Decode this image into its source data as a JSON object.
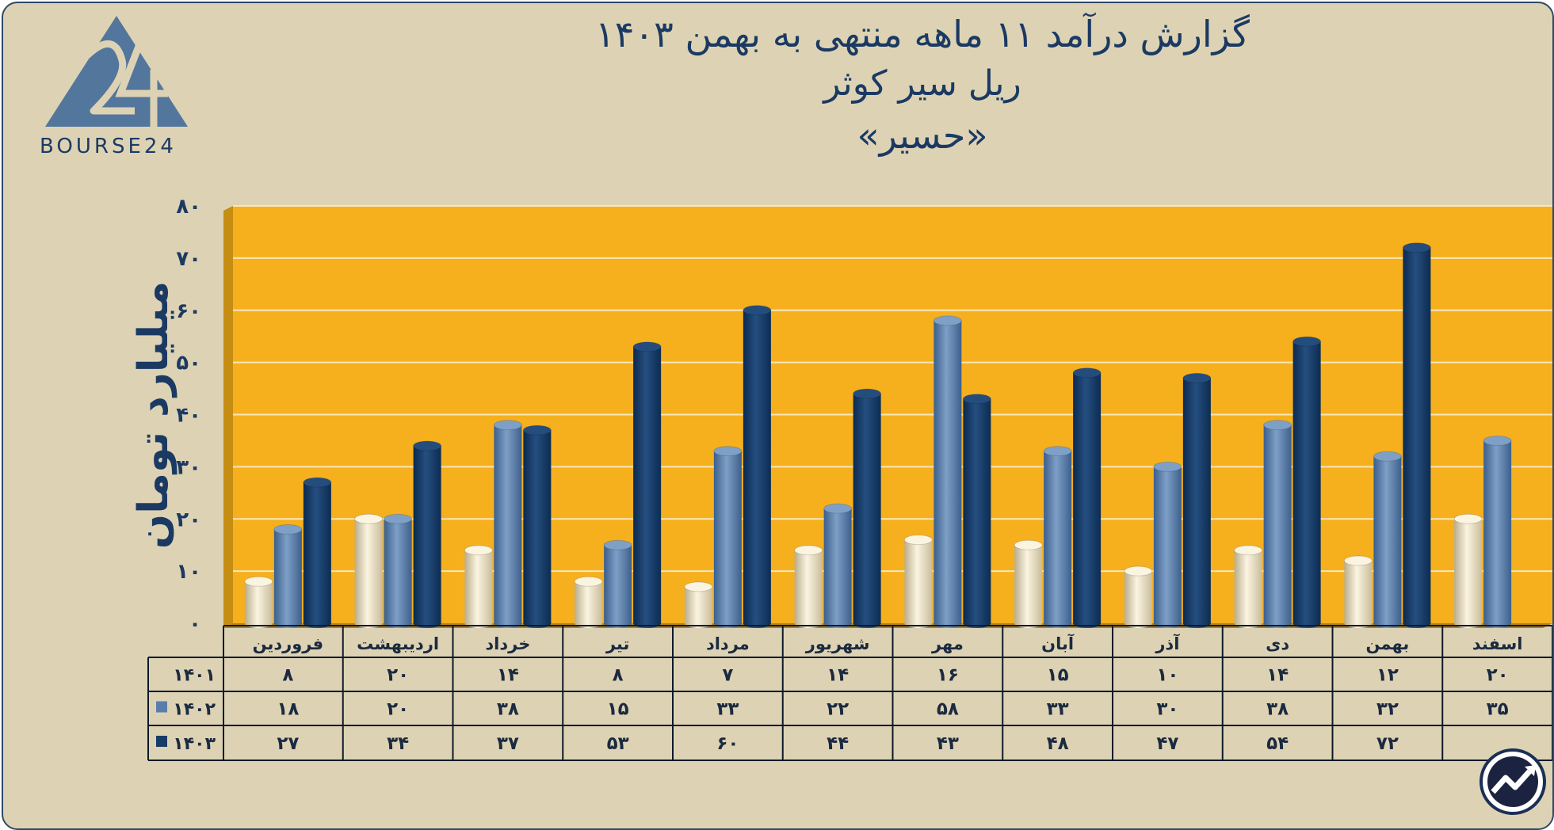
{
  "header": {
    "title_line1": "گزارش  درآمد ۱۱ ماهه منتهی به بهمن ۱۴۰۳",
    "title_line2": "ریل سیر کوثر",
    "title_line3": "«حسیر»",
    "logo_text": "BOURSE24"
  },
  "chart_data": {
    "type": "bar",
    "title": "گزارش  درآمد ۱۱ ماهه منتهی به بهمن ۱۴۰۳",
    "subtitle": "ریل سیر کوثر «حسیر»",
    "ylabel": "میلیارد تومان",
    "xlabel": "",
    "ylim": [
      0,
      80
    ],
    "yticks": [
      0,
      10,
      20,
      30,
      40,
      50,
      60,
      70,
      80
    ],
    "ytick_labels": [
      "۰",
      "۱۰",
      "۲۰",
      "۳۰",
      "۴۰",
      "۵۰",
      "۶۰",
      "۷۰",
      "۸۰"
    ],
    "grid": true,
    "categories": [
      "فروردین",
      "اردیبهشت",
      "خرداد",
      "تیر",
      "مرداد",
      "شهریور",
      "مهر",
      "آبان",
      "آذر",
      "دی",
      "بهمن",
      "اسفند"
    ],
    "series": [
      {
        "name": "۱۴۰۱",
        "color": "#efe6cc",
        "values": [
          8,
          20,
          14,
          8,
          7,
          14,
          16,
          15,
          10,
          14,
          12,
          20
        ],
        "labels": [
          "۸",
          "۲۰",
          "۱۴",
          "۸",
          "۷",
          "۱۴",
          "۱۶",
          "۱۵",
          "۱۰",
          "۱۴",
          "۱۲",
          "۲۰"
        ]
      },
      {
        "name": "۱۴۰۲",
        "color": "#5a7eab",
        "values": [
          18,
          20,
          38,
          15,
          33,
          22,
          58,
          33,
          30,
          38,
          32,
          35
        ],
        "labels": [
          "۱۸",
          "۲۰",
          "۳۸",
          "۱۵",
          "۳۳",
          "۲۲",
          "۵۸",
          "۳۳",
          "۳۰",
          "۳۸",
          "۳۲",
          "۳۵"
        ]
      },
      {
        "name": "۱۴۰۳",
        "color": "#163b67",
        "values": [
          27,
          34,
          37,
          53,
          60,
          44,
          43,
          48,
          47,
          54,
          72,
          null
        ],
        "labels": [
          "۲۷",
          "۳۴",
          "۳۷",
          "۵۳",
          "۶۰",
          "۴۴",
          "۴۳",
          "۴۸",
          "۴۷",
          "۵۴",
          "۷۲",
          ""
        ]
      }
    ],
    "plot_background": "#f6b01e",
    "data_table": true
  }
}
